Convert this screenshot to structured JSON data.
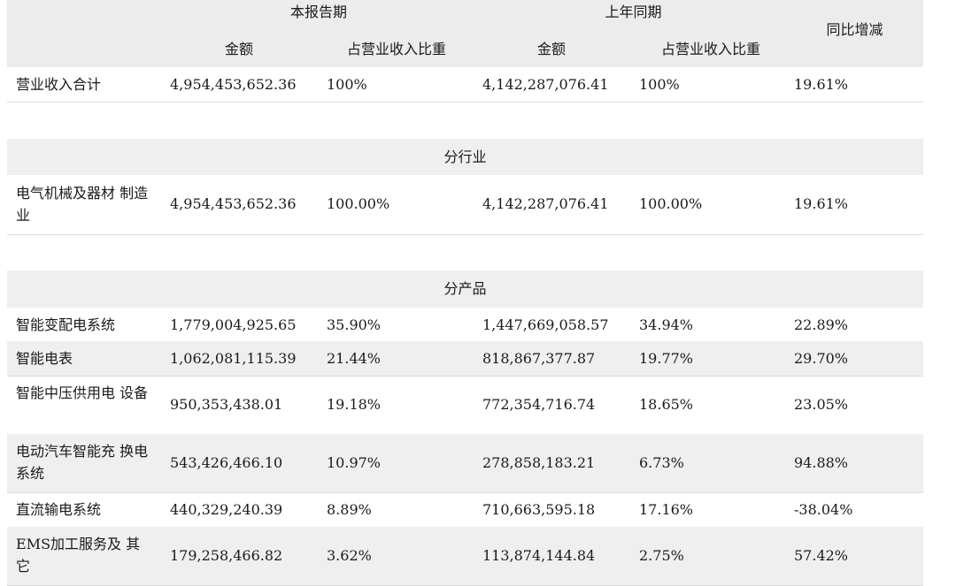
{
  "header": {
    "current_period": "本报告期",
    "previous_period": "上年同期",
    "yoy_change": "同比增减",
    "amount": "金额",
    "share": "占营业收入比重"
  },
  "total_row": {
    "label": "营业收入合计",
    "cur_amount": "4,954,453,652.36",
    "cur_share": "100%",
    "prev_amount": "4,142,287,076.41",
    "prev_share": "100%",
    "yoy": "19.61%"
  },
  "industry_section": {
    "title": "分行业",
    "rows": [
      {
        "label": "电气机械及器材 制造业",
        "cur_amount": "4,954,453,652.36",
        "cur_share": "100.00%",
        "prev_amount": "4,142,287,076.41",
        "prev_share": "100.00%",
        "yoy": "19.61%"
      }
    ]
  },
  "product_section": {
    "title": "分产品",
    "rows": [
      {
        "label": "智能变配电系统",
        "cur_amount": "1,779,004,925.65",
        "cur_share": "35.90%",
        "prev_amount": "1,447,669,058.57",
        "prev_share": "34.94%",
        "yoy": "22.89%"
      },
      {
        "label": "智能电表",
        "cur_amount": "1,062,081,115.39",
        "cur_share": "21.44%",
        "prev_amount": "818,867,377.87",
        "prev_share": "19.77%",
        "yoy": "29.70%"
      },
      {
        "label": "智能中压供用电 设备",
        "cur_amount": "950,353,438.01",
        "cur_share": "19.18%",
        "prev_amount": "772,354,716.74",
        "prev_share": "18.65%",
        "yoy": "23.05%"
      },
      {
        "label": "电动汽车智能充 换电系统",
        "cur_amount": "543,426,466.10",
        "cur_share": "10.97%",
        "prev_amount": "278,858,183.21",
        "prev_share": "6.73%",
        "yoy": "94.88%"
      },
      {
        "label": "直流输电系统",
        "cur_amount": "440,329,240.39",
        "cur_share": "8.89%",
        "prev_amount": "710,663,595.18",
        "prev_share": "17.16%",
        "yoy": "-38.04%"
      },
      {
        "label": "EMS加工服务及 其它",
        "cur_amount": "179,258,466.82",
        "cur_share": "3.62%",
        "prev_amount": "113,874,144.84",
        "prev_share": "2.75%",
        "yoy": "57.42%"
      }
    ]
  }
}
